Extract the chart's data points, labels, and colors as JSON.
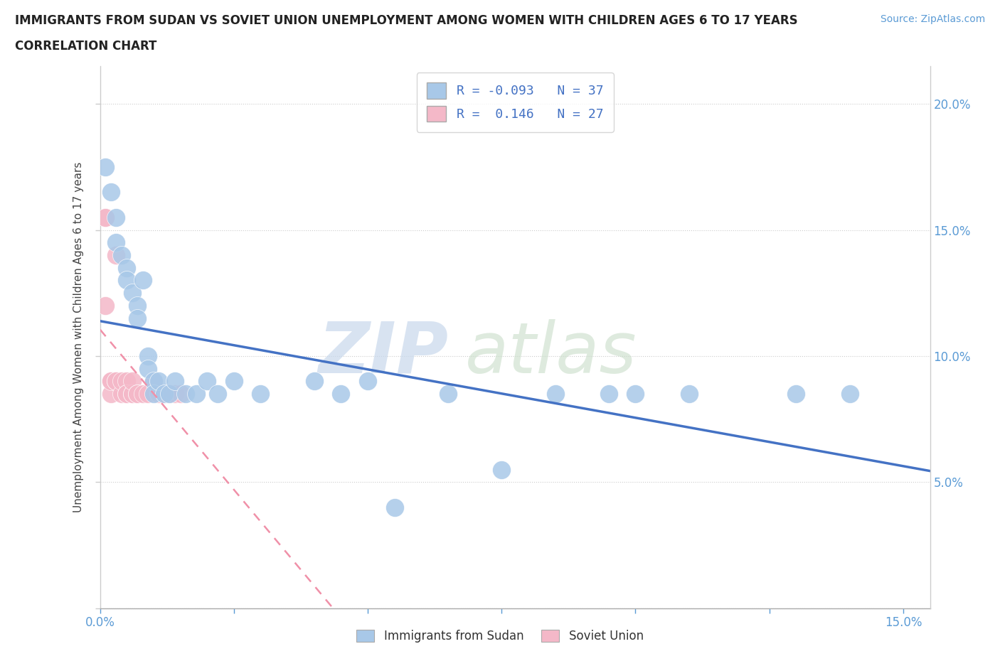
{
  "title_line1": "IMMIGRANTS FROM SUDAN VS SOVIET UNION UNEMPLOYMENT AMONG WOMEN WITH CHILDREN AGES 6 TO 17 YEARS",
  "title_line2": "CORRELATION CHART",
  "source": "Source: ZipAtlas.com",
  "ylabel": "Unemployment Among Women with Children Ages 6 to 17 years",
  "xlim": [
    0.0,
    0.155
  ],
  "ylim": [
    0.0,
    0.215
  ],
  "xtick_positions": [
    0.0,
    0.025,
    0.05,
    0.075,
    0.1,
    0.125,
    0.15
  ],
  "ytick_positions": [
    0.0,
    0.05,
    0.1,
    0.15,
    0.2
  ],
  "sudan_r": -0.093,
  "sudan_n": 37,
  "soviet_r": 0.146,
  "soviet_n": 27,
  "sudan_color": "#a8c8e8",
  "soviet_color": "#f4b8c8",
  "sudan_line_color": "#4472c4",
  "soviet_line_color": "#f090a8",
  "sudan_x": [
    0.001,
    0.002,
    0.003,
    0.003,
    0.004,
    0.005,
    0.005,
    0.006,
    0.007,
    0.007,
    0.008,
    0.009,
    0.009,
    0.01,
    0.01,
    0.011,
    0.012,
    0.013,
    0.014,
    0.016,
    0.018,
    0.02,
    0.022,
    0.025,
    0.03,
    0.04,
    0.045,
    0.05,
    0.055,
    0.065,
    0.075,
    0.085,
    0.095,
    0.1,
    0.11,
    0.13,
    0.14
  ],
  "sudan_y": [
    0.175,
    0.165,
    0.155,
    0.145,
    0.14,
    0.135,
    0.13,
    0.125,
    0.12,
    0.115,
    0.13,
    0.1,
    0.095,
    0.09,
    0.085,
    0.09,
    0.085,
    0.085,
    0.09,
    0.085,
    0.085,
    0.09,
    0.085,
    0.09,
    0.085,
    0.09,
    0.085,
    0.09,
    0.04,
    0.085,
    0.055,
    0.085,
    0.085,
    0.085,
    0.085,
    0.085,
    0.085
  ],
  "soviet_x": [
    0.001,
    0.001,
    0.001,
    0.002,
    0.002,
    0.002,
    0.003,
    0.003,
    0.003,
    0.004,
    0.004,
    0.005,
    0.005,
    0.005,
    0.006,
    0.006,
    0.006,
    0.007,
    0.007,
    0.008,
    0.009,
    0.01,
    0.011,
    0.012,
    0.013,
    0.014,
    0.015
  ],
  "soviet_y": [
    0.155,
    0.155,
    0.12,
    0.09,
    0.085,
    0.09,
    0.14,
    0.09,
    0.09,
    0.085,
    0.09,
    0.09,
    0.085,
    0.085,
    0.085,
    0.085,
    0.09,
    0.085,
    0.085,
    0.085,
    0.085,
    0.09,
    0.085,
    0.085,
    0.085,
    0.085,
    0.085
  ]
}
